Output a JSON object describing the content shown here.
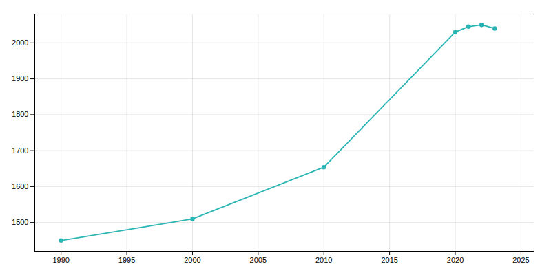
{
  "chart_data": {
    "type": "line",
    "x": [
      1990,
      2000,
      2010,
      2020,
      2021,
      2022,
      2023
    ],
    "values": [
      1450,
      1510,
      1654,
      2030,
      2045,
      2050,
      2040
    ],
    "color": "#2ab5b5",
    "marker": "circle",
    "xlim": [
      1988,
      2026
    ],
    "ylim": [
      1420,
      2080
    ],
    "xticks": [
      1990,
      1995,
      2000,
      2005,
      2010,
      2015,
      2020,
      2025
    ],
    "yticks": [
      1500,
      1600,
      1700,
      1800,
      1900,
      2000
    ],
    "grid": true
  }
}
